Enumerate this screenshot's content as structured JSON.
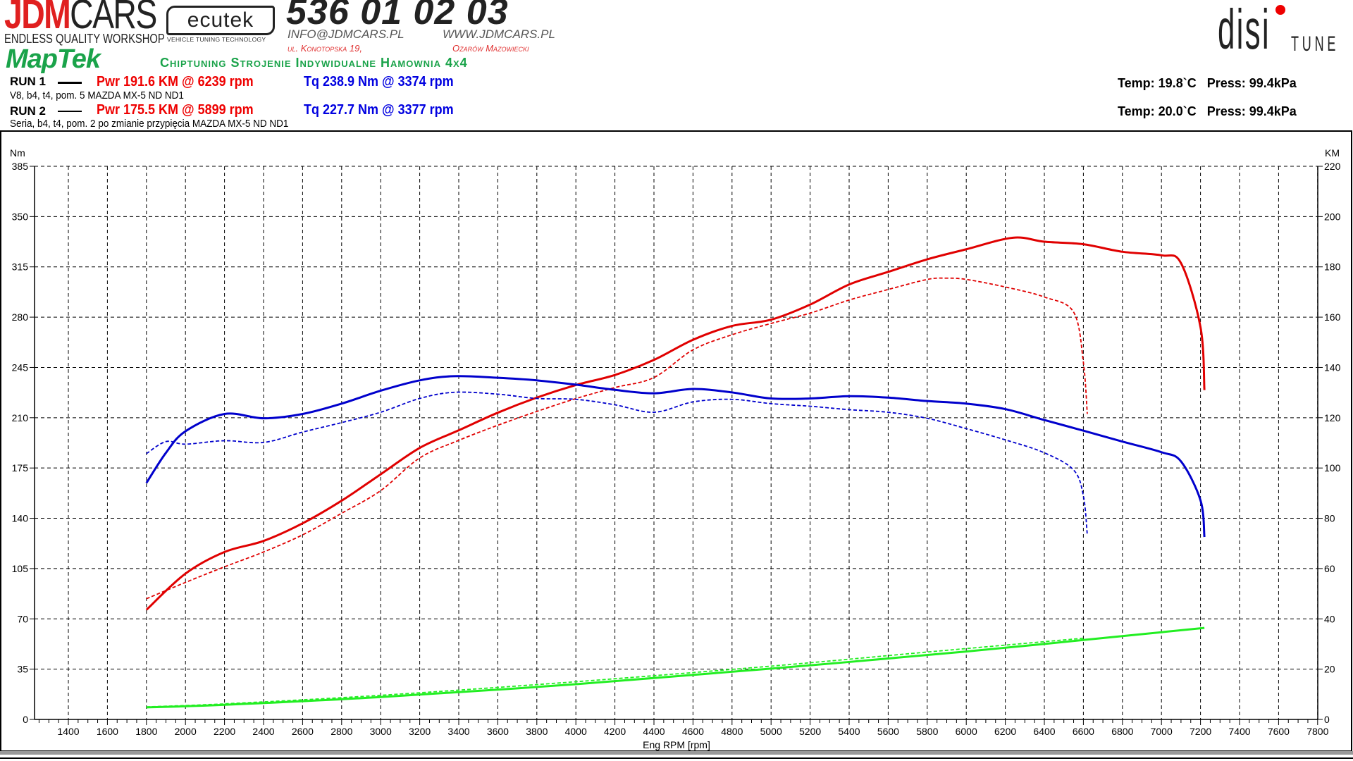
{
  "header": {
    "logo_jdm_red": "JDM",
    "logo_jdm_black": "CARS",
    "logo_jdm_tagline": "ENDLESS QUALITY WORKSHOP",
    "logo_ecutek": "ecutek",
    "logo_ecutek_tagline": "VEHICLE TUNING TECHNOLOGY",
    "phone": "536 01 02 03",
    "email": "INFO@JDMCARS.PL",
    "website": "WWW.JDMCARS.PL",
    "address": "ul. Konotopska 19,",
    "city": "Ożarów Mazowiecki",
    "logo_maptek": "MapTek",
    "slogan": "Chiptuning Strojenie Indywidualne Hamownia 4x4",
    "logo_disi": "disi",
    "logo_tune": "TUNE"
  },
  "runs": [
    {
      "label": "RUN 1",
      "pwr": "Pwr  191.6 KM @ 6239 rpm",
      "tq": "Tq 238.9 Nm @ 3374 rpm",
      "desc": "V8, b4, t4, pom. 5 MAZDA MX-5 ND ND1",
      "temp": "Temp: 19.8`C",
      "press": "Press: 99.4kPa",
      "line_style": "solid"
    },
    {
      "label": "RUN 2",
      "pwr": "Pwr  175.5 KM @ 5899 rpm",
      "tq": "Tq 227.7 Nm @ 3377 rpm",
      "desc": "Seria, b4, t4, pom. 2 po zmianie przypięcia MAZDA MX-5 ND ND1",
      "temp": "Temp: 20.0`C",
      "press": "Press: 99.4kPa",
      "line_style": "dashed"
    }
  ],
  "colors": {
    "power": "#e00000",
    "torque": "#0000cc",
    "loss": "#22ee22",
    "grid": "#000000"
  },
  "chart_data": {
    "type": "line",
    "xlabel": "Eng RPM [rpm]",
    "ylabel_left": "Nm",
    "ylabel_right": "KM",
    "xlim": [
      1200,
      7800
    ],
    "xticks": [
      1400,
      1600,
      1800,
      2000,
      2200,
      2400,
      2600,
      2800,
      3000,
      3200,
      3400,
      3600,
      3800,
      4000,
      4200,
      4400,
      4600,
      4800,
      5000,
      5200,
      5400,
      5600,
      5800,
      6000,
      6200,
      6400,
      6600,
      6800,
      7000,
      7200,
      7400,
      7600,
      7800
    ],
    "ylim_left": [
      0,
      385
    ],
    "yticks_left": [
      0,
      35,
      70,
      105,
      140,
      175,
      210,
      245,
      280,
      315,
      350,
      385
    ],
    "ylim_right": [
      0,
      220
    ],
    "yticks_right": [
      0,
      20,
      40,
      60,
      80,
      100,
      120,
      140,
      160,
      180,
      200,
      220
    ],
    "grid": true,
    "series": [
      {
        "run": "RUN 1",
        "quantity": "power",
        "axis": "right",
        "style": "solid",
        "x": [
          1800,
          2000,
          2200,
          2400,
          2600,
          2800,
          3000,
          3200,
          3400,
          3600,
          3800,
          4000,
          4200,
          4400,
          4600,
          4800,
          5000,
          5200,
          5400,
          5600,
          5800,
          6000,
          6239,
          6400,
          6600,
          6800,
          7000,
          7100,
          7200,
          7220
        ],
        "y": [
          43.6,
          58,
          66.6,
          71,
          78,
          87,
          97.5,
          108,
          115,
          122,
          128,
          133,
          137,
          143,
          151,
          156.5,
          159,
          165,
          173,
          178,
          183,
          187,
          191.6,
          190,
          189,
          186,
          184.6,
          181.5,
          156,
          131
        ]
      },
      {
        "run": "RUN 2",
        "quantity": "power",
        "axis": "right",
        "style": "dashed",
        "x": [
          1800,
          2000,
          2200,
          2400,
          2600,
          2800,
          3000,
          3200,
          3400,
          3600,
          3800,
          4000,
          4200,
          4400,
          4600,
          4800,
          5000,
          5200,
          5400,
          5600,
          5800,
          5899,
          6000,
          6200,
          6400,
          6550,
          6600,
          6620
        ],
        "y": [
          48,
          54.5,
          60.7,
          66.6,
          73.4,
          82,
          91,
          104,
          111,
          117,
          122.5,
          127.6,
          132,
          136,
          147,
          153,
          157.5,
          161.6,
          166.8,
          171,
          175,
          175.5,
          175,
          172,
          168,
          162,
          142,
          121.5
        ]
      },
      {
        "run": "RUN 1",
        "quantity": "torque",
        "axis": "left",
        "style": "solid",
        "x": [
          1800,
          1900,
          2000,
          2200,
          2400,
          2600,
          2800,
          3000,
          3200,
          3374,
          3600,
          3800,
          4000,
          4200,
          4400,
          4600,
          4800,
          5000,
          5200,
          5400,
          5600,
          5800,
          6000,
          6200,
          6400,
          6600,
          6800,
          7000,
          7100,
          7200,
          7220
        ],
        "y": [
          164.6,
          185.6,
          200.6,
          212.6,
          209.6,
          212.6,
          219.8,
          228.8,
          236,
          238.9,
          237.8,
          236,
          233,
          229.4,
          227,
          230,
          227.6,
          223.4,
          223.4,
          225,
          224,
          221.6,
          219.8,
          216,
          208.4,
          201,
          193.4,
          186,
          179.6,
          152.5,
          127
        ]
      },
      {
        "run": "RUN 2",
        "quantity": "torque",
        "axis": "left",
        "style": "dashed",
        "x": [
          1800,
          1900,
          2000,
          2200,
          2400,
          2600,
          2800,
          3000,
          3200,
          3377,
          3600,
          3800,
          4000,
          4200,
          4400,
          4600,
          4800,
          5000,
          5200,
          5400,
          5600,
          5800,
          6000,
          6200,
          6400,
          6550,
          6600,
          6620
        ],
        "y": [
          185,
          193.4,
          191.6,
          194,
          192.8,
          200,
          206.6,
          213.8,
          223.4,
          227.7,
          226.4,
          223.4,
          222.8,
          219,
          213.8,
          221,
          222.8,
          219.8,
          218,
          215.6,
          213.8,
          209.6,
          202.4,
          194.6,
          185.6,
          173.6,
          155.6,
          128.5
        ]
      },
      {
        "run": "RUN 1",
        "quantity": "loss",
        "axis": "right",
        "style": "solid",
        "x": [
          1800,
          2200,
          3000,
          4000,
          5000,
          6000,
          6600,
          7220
        ],
        "y": [
          4.8,
          5.8,
          8.9,
          14,
          20.2,
          27,
          31.6,
          36.4
        ]
      },
      {
        "run": "RUN 2",
        "quantity": "loss",
        "axis": "right",
        "style": "dashed",
        "x": [
          1800,
          2200,
          3000,
          4000,
          5000,
          5800,
          6600
        ],
        "y": [
          5,
          6.2,
          9.6,
          15,
          21.2,
          26.8,
          32.3
        ]
      }
    ]
  }
}
